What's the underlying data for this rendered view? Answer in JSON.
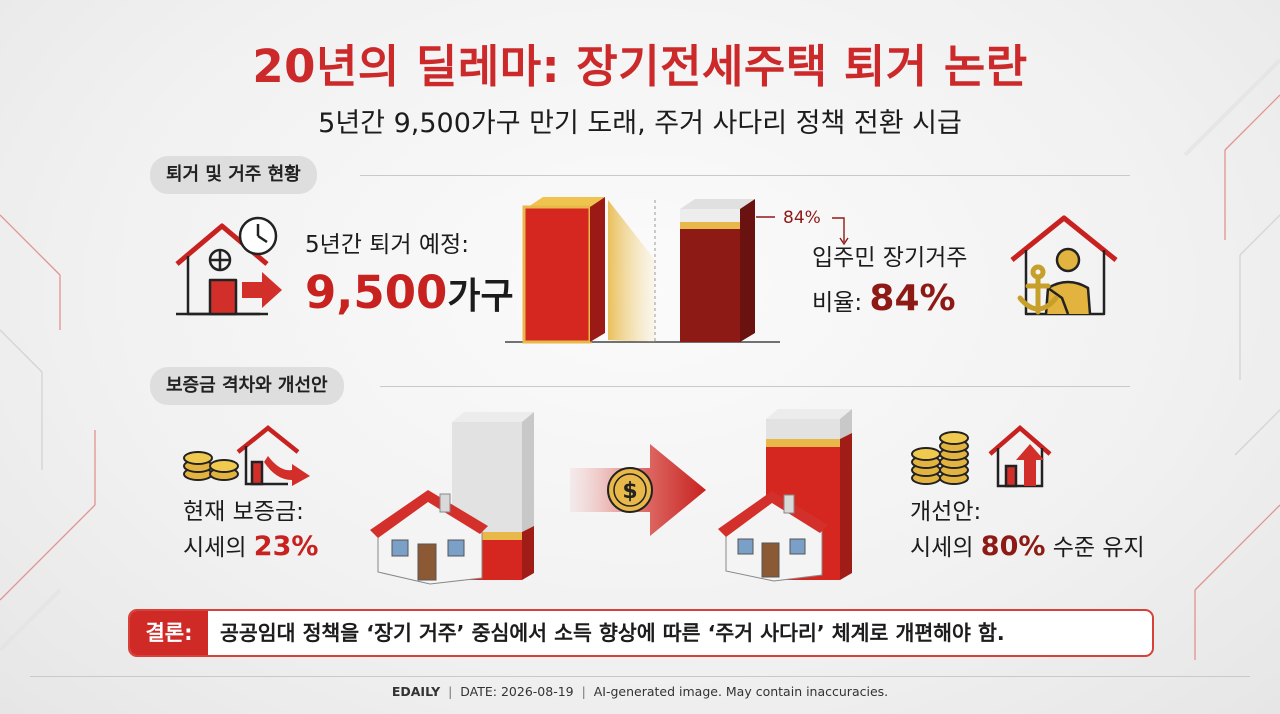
{
  "header": {
    "title": "20년의 딜레마: 장기전세주택 퇴거 논란",
    "subtitle": "5년간 9,500가구 만기 도래, 주거 사다리 정책 전환 시급"
  },
  "section1": {
    "label": "퇴거 및 거주 현황",
    "eviction_label": "5년간 퇴거 예정:",
    "eviction_value": "9,500",
    "eviction_unit": "가구",
    "bar_callout": "84%",
    "residence_label": "입주민 장기거주",
    "residence_prefix": "비율: ",
    "residence_value": "84%"
  },
  "section2": {
    "label": "보증금 격차와 개선안",
    "current_label": "현재 보증금:",
    "current_prefix": "시세의 ",
    "current_value": "23%",
    "improved_label": "개선안:",
    "improved_prefix": "시세의 ",
    "improved_value": "80%",
    "improved_suffix": " 수준 유지"
  },
  "conclusion": {
    "tag": "결론:",
    "text": "공공임대 정책을 ‘장기 거주’ 중심에서 소득 향상에 따른 ‘주거 사다리’ 체계로 개편해야 함."
  },
  "footer": {
    "brand": "EDAILY",
    "date": "DATE: 2026-08-19",
    "disclaimer": "AI-generated image. May contain inaccuracies."
  },
  "colors": {
    "accent_red": "#cc2a2a",
    "dark_red": "#8e1a16",
    "gold": "#e3b340",
    "pill_gray": "#dedede"
  },
  "icons": [
    "house-clock-icon",
    "house-person-anchor-icon",
    "coins-house-down-icon",
    "dollar-arrow-icon",
    "coins-house-up-icon"
  ]
}
